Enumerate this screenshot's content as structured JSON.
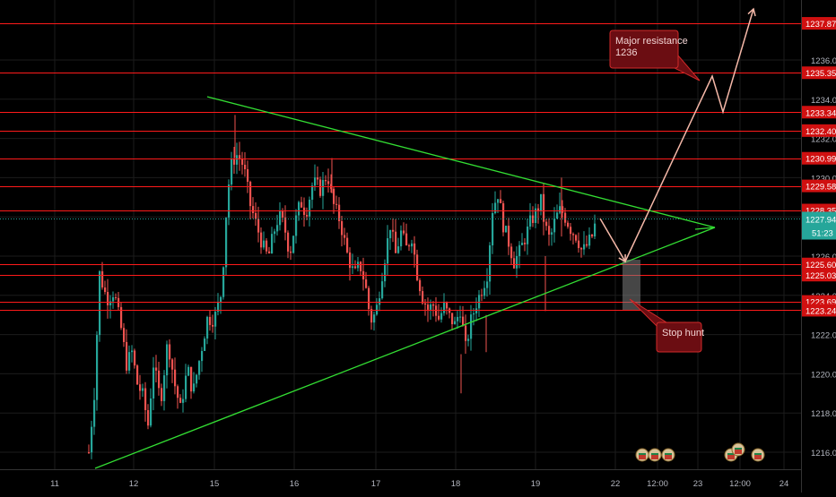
{
  "chart_data": {
    "type": "candlestick",
    "x_ticks": [
      "11",
      "12",
      "15",
      "16",
      "17",
      "18",
      "19",
      "22",
      "12:00",
      "23",
      "12:00",
      "24"
    ],
    "y_ticks": [
      "1216.00",
      "1218.00",
      "1220.00",
      "1222.00",
      "1224.00",
      "1226.00",
      "1228.00",
      "1230.00",
      "1232.00",
      "1234.00",
      "1236.00"
    ],
    "ylim": [
      1215.0,
      1238.4
    ],
    "price_levels": [
      {
        "label": "1237.87",
        "value": 1237.87
      },
      {
        "label": "1235.35",
        "value": 1235.35
      },
      {
        "label": "1233.34",
        "value": 1233.34
      },
      {
        "label": "1232.40",
        "value": 1232.4
      },
      {
        "label": "1230.99",
        "value": 1230.99
      },
      {
        "label": "1229.58",
        "value": 1229.58
      },
      {
        "label": "1228.35",
        "value": 1228.35
      },
      {
        "label": "1225.60",
        "value": 1225.6
      },
      {
        "label": "1225.03",
        "value": 1225.03
      },
      {
        "label": "1223.69",
        "value": 1223.69
      },
      {
        "label": "1223.24",
        "value": 1223.24
      }
    ],
    "last_price": {
      "label": "1227.94",
      "value": 1227.94
    },
    "countdown": "51:23",
    "annotations": [
      {
        "text": "Major resistance\n1236"
      },
      {
        "text": "Stop hunt"
      }
    ],
    "colors": {
      "up": "#26a69a",
      "down": "#ef5350",
      "level_line": "#ff1a1a",
      "trendline": "#33dd33",
      "projection": "#f5b8a8",
      "callout_bg": "#6b0d12",
      "callout_border": "#d02a2a",
      "last_price_bg": "#26a69a",
      "level_label_bg": "#d01010"
    }
  }
}
